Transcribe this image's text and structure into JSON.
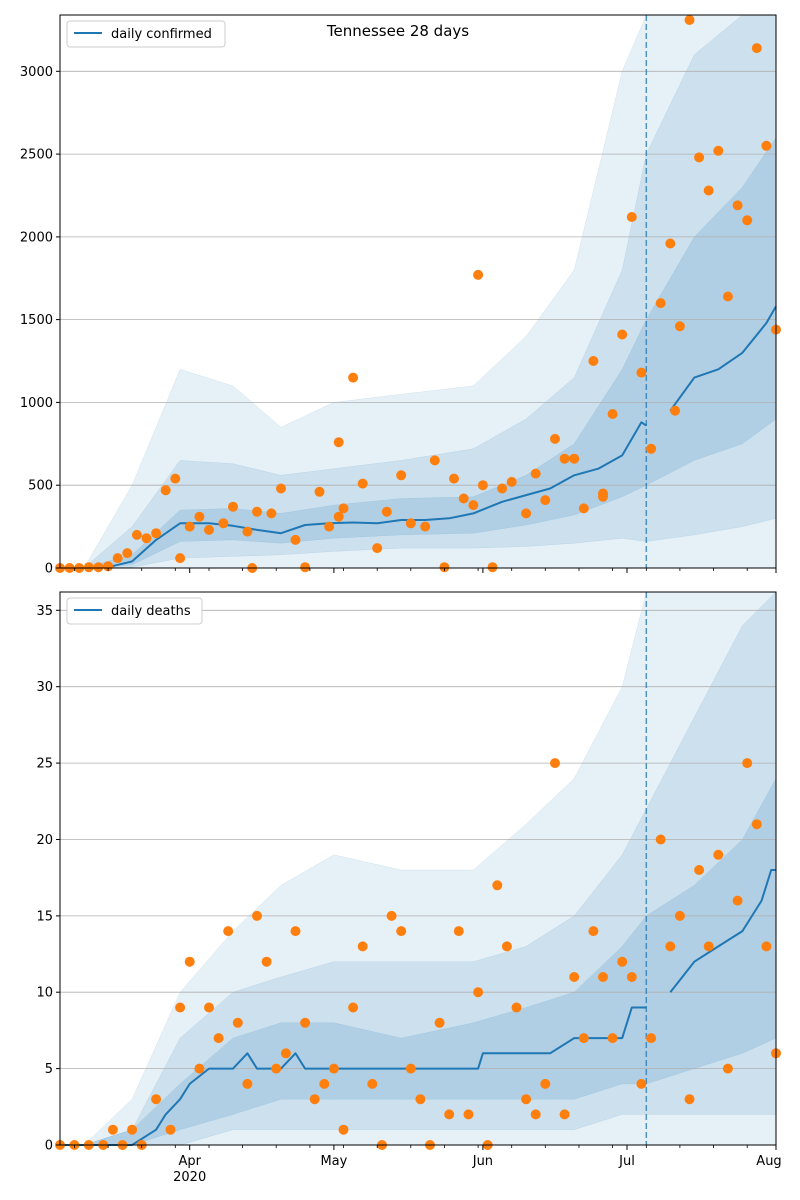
{
  "chart_data": [
    {
      "type": "line",
      "title": "Tennessee 28 days",
      "x_axis": {
        "type": "date",
        "start": "2020-03-05",
        "end": "2020-08-01"
      },
      "ylim": [
        0,
        3340
      ],
      "yticks": [
        0,
        500,
        1000,
        1500,
        2000,
        2500,
        3000
      ],
      "grid": "horizontal",
      "legend": {
        "placement": "top-left",
        "entries": [
          "daily confirmed"
        ]
      },
      "forecast_start": "2020-07-05",
      "line_color": "#1f77b4",
      "point_color": "#ff7f0e",
      "band_color": "#1f77b4",
      "line": {
        "name": "daily confirmed",
        "x": [
          "2020-03-05",
          "2020-03-10",
          "2020-03-15",
          "2020-03-20",
          "2020-03-25",
          "2020-03-30",
          "2020-04-05",
          "2020-04-10",
          "2020-04-15",
          "2020-04-20",
          "2020-04-25",
          "2020-04-30",
          "2020-05-05",
          "2020-05-10",
          "2020-05-15",
          "2020-05-20",
          "2020-05-25",
          "2020-05-30",
          "2020-06-05",
          "2020-06-10",
          "2020-06-15",
          "2020-06-20",
          "2020-06-25",
          "2020-06-30",
          "2020-07-04",
          "2020-07-05",
          "2020-07-10",
          "2020-07-15",
          "2020-07-20",
          "2020-07-25",
          "2020-07-30",
          "2020-08-01"
        ],
        "y": [
          0,
          0,
          5,
          40,
          170,
          270,
          270,
          255,
          230,
          210,
          260,
          270,
          275,
          270,
          290,
          290,
          300,
          330,
          400,
          440,
          480,
          560,
          600,
          680,
          880,
          860,
          950,
          1150,
          1200,
          1300,
          1480,
          1580
        ]
      },
      "bands": [
        {
          "level": "outer",
          "x": [
            "2020-03-10",
            "2020-03-20",
            "2020-03-30",
            "2020-04-10",
            "2020-04-20",
            "2020-05-01",
            "2020-05-15",
            "2020-05-30",
            "2020-06-10",
            "2020-06-20",
            "2020-06-30",
            "2020-07-05",
            "2020-07-15",
            "2020-07-25",
            "2020-08-01"
          ],
          "lower": [
            0,
            0,
            0,
            0,
            0,
            0,
            0,
            0,
            0,
            0,
            0,
            0,
            0,
            0,
            0
          ],
          "upper": [
            0,
            500,
            1200,
            1100,
            850,
            1000,
            1050,
            1100,
            1400,
            1800,
            3000,
            3340,
            3340,
            3340,
            3340
          ]
        },
        {
          "level": "middle",
          "x": [
            "2020-03-10",
            "2020-03-20",
            "2020-03-30",
            "2020-04-10",
            "2020-04-20",
            "2020-05-01",
            "2020-05-15",
            "2020-05-30",
            "2020-06-10",
            "2020-06-20",
            "2020-06-30",
            "2020-07-05",
            "2020-07-15",
            "2020-07-25",
            "2020-08-01"
          ],
          "lower": [
            0,
            5,
            60,
            70,
            80,
            100,
            120,
            120,
            130,
            150,
            180,
            160,
            200,
            250,
            300
          ],
          "upper": [
            0,
            250,
            650,
            630,
            560,
            600,
            650,
            720,
            900,
            1150,
            1800,
            2500,
            3100,
            3340,
            3340
          ]
        },
        {
          "level": "inner",
          "x": [
            "2020-03-10",
            "2020-03-20",
            "2020-03-30",
            "2020-04-10",
            "2020-04-20",
            "2020-05-01",
            "2020-05-15",
            "2020-05-30",
            "2020-06-10",
            "2020-06-20",
            "2020-06-30",
            "2020-07-05",
            "2020-07-15",
            "2020-07-25",
            "2020-08-01"
          ],
          "lower": [
            0,
            20,
            160,
            170,
            150,
            180,
            200,
            210,
            260,
            320,
            430,
            500,
            650,
            750,
            900
          ],
          "upper": [
            0,
            80,
            350,
            360,
            330,
            380,
            420,
            430,
            560,
            750,
            1200,
            1500,
            2000,
            2300,
            2600
          ]
        }
      ],
      "points": {
        "x": [
          "2020-03-05",
          "2020-03-07",
          "2020-03-09",
          "2020-03-11",
          "2020-03-13",
          "2020-03-15",
          "2020-03-17",
          "2020-03-19",
          "2020-03-21",
          "2020-03-23",
          "2020-03-25",
          "2020-03-27",
          "2020-03-29",
          "2020-03-30",
          "2020-04-01",
          "2020-04-03",
          "2020-04-05",
          "2020-04-08",
          "2020-04-10",
          "2020-04-13",
          "2020-04-15",
          "2020-04-18",
          "2020-04-20",
          "2020-04-23",
          "2020-04-25",
          "2020-04-28",
          "2020-04-30",
          "2020-05-02",
          "2020-05-03",
          "2020-05-05",
          "2020-05-07",
          "2020-05-10",
          "2020-05-12",
          "2020-05-15",
          "2020-05-17",
          "2020-05-20",
          "2020-05-22",
          "2020-05-24",
          "2020-05-26",
          "2020-05-28",
          "2020-05-30",
          "2020-06-01",
          "2020-06-03",
          "2020-06-05",
          "2020-06-07",
          "2020-06-10",
          "2020-06-12",
          "2020-06-14",
          "2020-06-16",
          "2020-06-18",
          "2020-06-20",
          "2020-06-22",
          "2020-06-24",
          "2020-06-26",
          "2020-06-28",
          "2020-06-30",
          "2020-07-02",
          "2020-07-04",
          "2020-07-06",
          "2020-07-08",
          "2020-07-10",
          "2020-07-12",
          "2020-07-14",
          "2020-07-16",
          "2020-07-18",
          "2020-07-20",
          "2020-07-22",
          "2020-07-24",
          "2020-07-26",
          "2020-07-28",
          "2020-07-30",
          "2020-08-01",
          "2020-04-14",
          "2020-05-02",
          "2020-05-31",
          "2020-06-26",
          "2020-07-11"
        ],
        "y": [
          0,
          0,
          0,
          5,
          5,
          10,
          60,
          90,
          200,
          180,
          210,
          470,
          540,
          60,
          250,
          310,
          230,
          270,
          370,
          220,
          340,
          330,
          480,
          170,
          5,
          460,
          250,
          310,
          360,
          1150,
          510,
          120,
          340,
          560,
          270,
          250,
          650,
          5,
          540,
          420,
          380,
          500,
          5,
          480,
          520,
          330,
          570,
          410,
          780,
          660,
          660,
          360,
          1250,
          430,
          930,
          1410,
          2120,
          1180,
          720,
          1600,
          1960,
          1460,
          3310,
          2480,
          2280,
          2520,
          1640,
          2190,
          2100,
          3140,
          2550,
          1440,
          0,
          760,
          1770,
          450,
          950
        ]
      }
    },
    {
      "type": "line",
      "title": "",
      "x_axis": {
        "type": "date",
        "start": "2020-03-05",
        "end": "2020-08-01"
      },
      "ylim": [
        0,
        36.2
      ],
      "yticks": [
        0,
        5,
        10,
        15,
        20,
        25,
        30,
        35
      ],
      "xticks": [
        "Apr",
        "May",
        "Jun",
        "Jul",
        "Aug"
      ],
      "xtick_year": "2020",
      "grid": "horizontal",
      "legend": {
        "placement": "top-left",
        "entries": [
          "daily deaths"
        ]
      },
      "forecast_start": "2020-07-05",
      "line_color": "#1f77b4",
      "point_color": "#ff7f0e",
      "band_color": "#1f77b4",
      "line": {
        "name": "daily deaths",
        "x": [
          "2020-03-05",
          "2020-03-20",
          "2020-03-25",
          "2020-03-27",
          "2020-03-30",
          "2020-04-01",
          "2020-04-05",
          "2020-04-10",
          "2020-04-13",
          "2020-04-15",
          "2020-04-20",
          "2020-04-23",
          "2020-04-25",
          "2020-05-01",
          "2020-05-15",
          "2020-05-31",
          "2020-06-01",
          "2020-06-15",
          "2020-06-20",
          "2020-06-30",
          "2020-07-02",
          "2020-07-05",
          "2020-07-10",
          "2020-07-15",
          "2020-07-20",
          "2020-07-25",
          "2020-07-29",
          "2020-07-31",
          "2020-08-01"
        ],
        "y": [
          0,
          0,
          1,
          2,
          3,
          4,
          5,
          5,
          6,
          5,
          5,
          6,
          5,
          5,
          5,
          5,
          6,
          6,
          7,
          7,
          9,
          9,
          10,
          12,
          13,
          14,
          16,
          18,
          18
        ]
      },
      "bands": [
        {
          "level": "outer",
          "x": [
            "2020-03-10",
            "2020-03-20",
            "2020-03-30",
            "2020-04-10",
            "2020-04-20",
            "2020-05-01",
            "2020-05-15",
            "2020-05-30",
            "2020-06-10",
            "2020-06-20",
            "2020-06-30",
            "2020-07-05",
            "2020-07-15",
            "2020-07-25",
            "2020-08-01"
          ],
          "lower": [
            0,
            0,
            0,
            0,
            0,
            0,
            0,
            0,
            0,
            0,
            0,
            0,
            0,
            0,
            0
          ],
          "upper": [
            0,
            3,
            10,
            14,
            17,
            19,
            18,
            18,
            21,
            24,
            30,
            36.2,
            36.2,
            36.2,
            36.2
          ]
        },
        {
          "level": "middle",
          "x": [
            "2020-03-10",
            "2020-03-20",
            "2020-03-30",
            "2020-04-10",
            "2020-04-20",
            "2020-05-01",
            "2020-05-15",
            "2020-05-30",
            "2020-06-10",
            "2020-06-20",
            "2020-06-30",
            "2020-07-05",
            "2020-07-15",
            "2020-07-25",
            "2020-08-01"
          ],
          "lower": [
            0,
            0,
            0,
            1,
            1,
            1,
            1,
            1,
            1,
            1,
            2,
            2,
            2,
            2,
            2
          ],
          "upper": [
            0,
            1,
            7,
            10,
            11,
            12,
            12,
            12,
            13,
            15,
            19,
            22,
            28,
            34,
            36.2
          ]
        },
        {
          "level": "inner",
          "x": [
            "2020-03-10",
            "2020-03-20",
            "2020-03-30",
            "2020-04-10",
            "2020-04-20",
            "2020-05-01",
            "2020-05-15",
            "2020-05-30",
            "2020-06-10",
            "2020-06-20",
            "2020-06-30",
            "2020-07-05",
            "2020-07-15",
            "2020-07-25",
            "2020-08-01"
          ],
          "lower": [
            0,
            0,
            1,
            2,
            3,
            3,
            3,
            3,
            3,
            3,
            4,
            4,
            5,
            6,
            7
          ],
          "upper": [
            0,
            1,
            4,
            7,
            8,
            8,
            7,
            8,
            9,
            10,
            13,
            15,
            17,
            20,
            24
          ]
        }
      ],
      "points": {
        "x": [
          "2020-03-05",
          "2020-03-08",
          "2020-03-11",
          "2020-03-14",
          "2020-03-16",
          "2020-03-18",
          "2020-03-20",
          "2020-03-22",
          "2020-03-25",
          "2020-03-28",
          "2020-03-30",
          "2020-04-01",
          "2020-04-03",
          "2020-04-05",
          "2020-04-07",
          "2020-04-09",
          "2020-04-11",
          "2020-04-13",
          "2020-04-15",
          "2020-04-17",
          "2020-04-19",
          "2020-04-21",
          "2020-04-23",
          "2020-04-25",
          "2020-04-27",
          "2020-04-29",
          "2020-05-01",
          "2020-05-03",
          "2020-05-05",
          "2020-05-07",
          "2020-05-09",
          "2020-05-11",
          "2020-05-13",
          "2020-05-15",
          "2020-05-17",
          "2020-05-19",
          "2020-05-21",
          "2020-05-23",
          "2020-05-25",
          "2020-05-27",
          "2020-05-29",
          "2020-05-31",
          "2020-06-02",
          "2020-06-04",
          "2020-06-06",
          "2020-06-08",
          "2020-06-10",
          "2020-06-12",
          "2020-06-14",
          "2020-06-16",
          "2020-06-18",
          "2020-06-20",
          "2020-06-22",
          "2020-06-24",
          "2020-06-26",
          "2020-06-28",
          "2020-06-30",
          "2020-07-02",
          "2020-07-04",
          "2020-07-06",
          "2020-07-08",
          "2020-07-10",
          "2020-07-12",
          "2020-07-14",
          "2020-07-16",
          "2020-07-18",
          "2020-07-20",
          "2020-07-22",
          "2020-07-24",
          "2020-07-26",
          "2020-07-28",
          "2020-07-30",
          "2020-08-01"
        ],
        "y": [
          0,
          0,
          0,
          0,
          1,
          0,
          1,
          0,
          3,
          1,
          9,
          12,
          5,
          9,
          7,
          14,
          8,
          4,
          15,
          12,
          5,
          6,
          14,
          8,
          3,
          4,
          5,
          1,
          9,
          13,
          4,
          0,
          15,
          14,
          5,
          3,
          0,
          8,
          2,
          14,
          2,
          10,
          0,
          17,
          13,
          9,
          3,
          2,
          4,
          25,
          2,
          11,
          7,
          14,
          11,
          7,
          12,
          11,
          4,
          7,
          20,
          13,
          15,
          3,
          18,
          13,
          19,
          5,
          16,
          25,
          21,
          13,
          6
        ]
      }
    }
  ]
}
